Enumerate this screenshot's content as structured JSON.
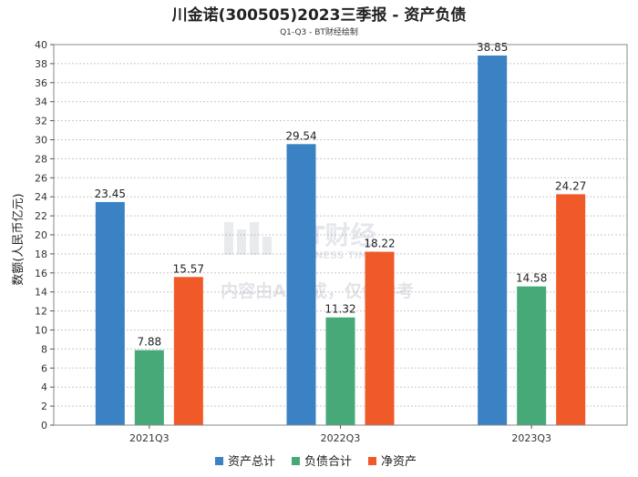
{
  "chart_data": {
    "type": "bar",
    "title": "川金诺(300505)2023三季报 - 资产负债",
    "subtitle": "Q1-Q3 - BT财经绘制",
    "xlabel": "",
    "ylabel": "数额(人民币亿元)",
    "ylim": [
      0,
      40
    ],
    "ytick_step": 2,
    "grid": true,
    "legend_position": "bottom",
    "categories": [
      "2021Q3",
      "2022Q3",
      "2023Q3"
    ],
    "series": [
      {
        "name": "资产总计",
        "color": "#3a82c4",
        "values": [
          23.45,
          29.54,
          38.85
        ]
      },
      {
        "name": "负债合计",
        "color": "#47a978",
        "values": [
          7.88,
          11.32,
          14.58
        ]
      },
      {
        "name": "净资产",
        "color": "#f05a28",
        "values": [
          15.57,
          18.22,
          24.27
        ]
      }
    ],
    "watermark": {
      "brand": "BT财经",
      "brand_en": "BUSINESS TIMES",
      "note": "内容由AI生成，仅供参考"
    }
  }
}
